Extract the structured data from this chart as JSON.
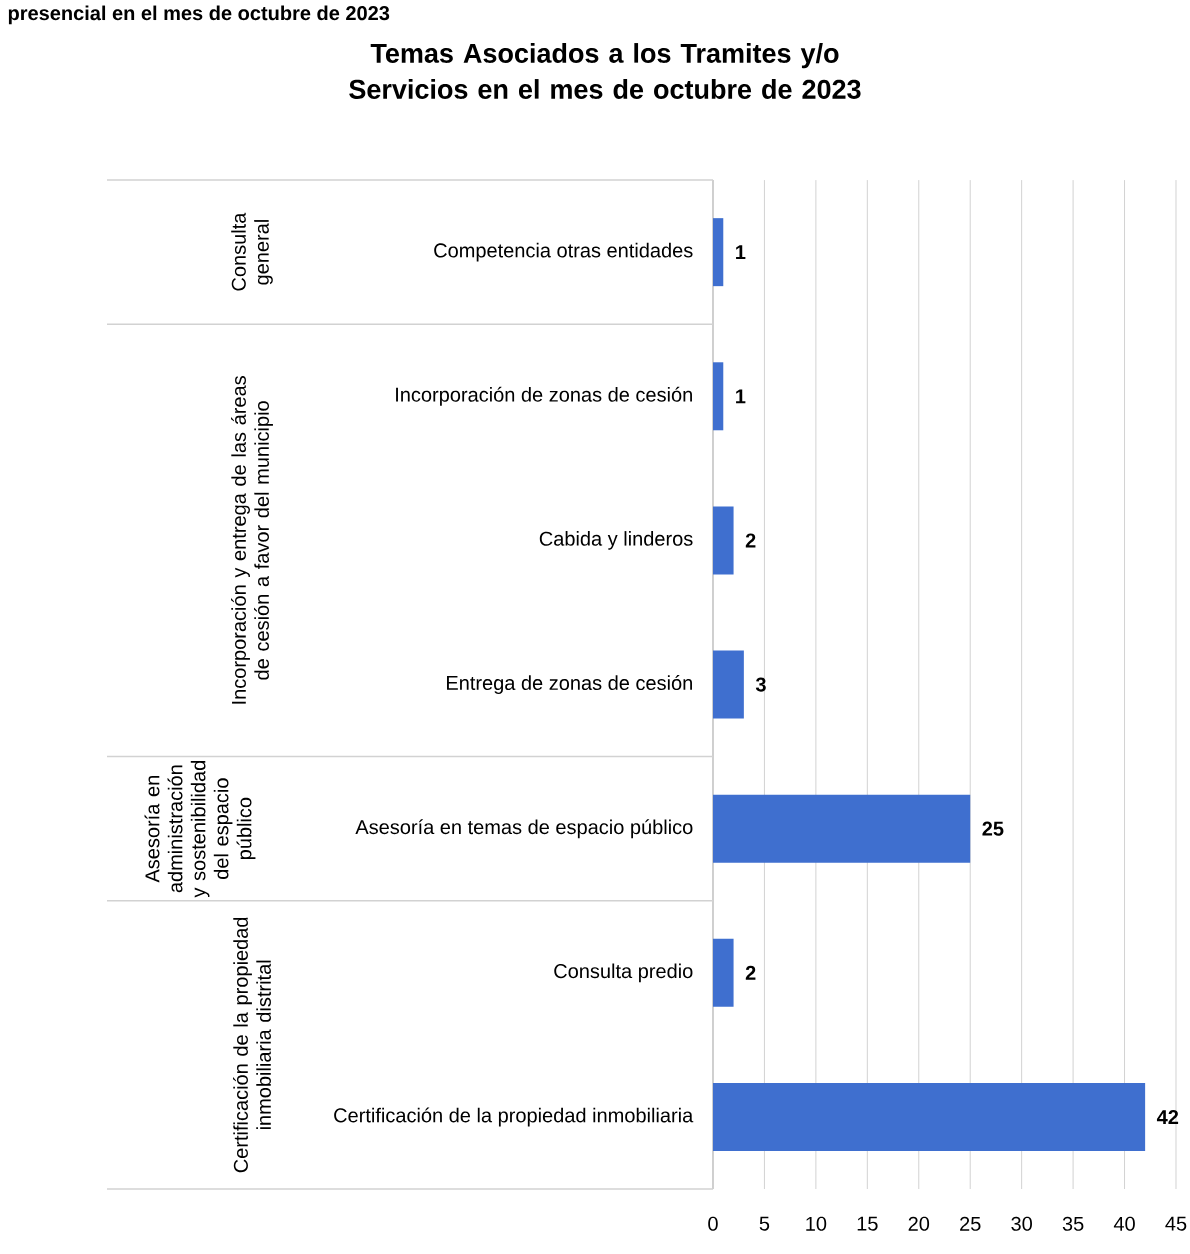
{
  "chart_data": {
    "type": "bar",
    "orientation": "horizontal",
    "title": "Temas Asociados a los Tramites y/o Servicios en el mes de octubre de 2023",
    "categories": [
      "Competencia otras entidades",
      "Incorporación de zonas de cesión",
      "Cabida y linderos",
      "Entrega de zonas de cesión",
      "Asesoría en temas de espacio público",
      "Consulta predio",
      "Certificación de la propiedad inmobiliaria"
    ],
    "values": [
      1,
      1,
      2,
      3,
      25,
      2,
      42
    ],
    "color": "#3f6fcf",
    "xlim": [
      0,
      45
    ],
    "xticks": [
      0,
      5,
      10,
      15,
      20,
      25,
      30,
      35,
      40,
      45
    ],
    "grid": "x",
    "data_labels": true,
    "annotations": [
      "presencial en el mes de octubre de 2023",
      "Consulta general",
      "Incorporación y entrega de las áreas de cesión a favor del municipio",
      "Asesoría en administración y sostenibilidad del espacio público",
      "Certificación de la propiedad inmobiliaria distrital"
    ]
  }
}
